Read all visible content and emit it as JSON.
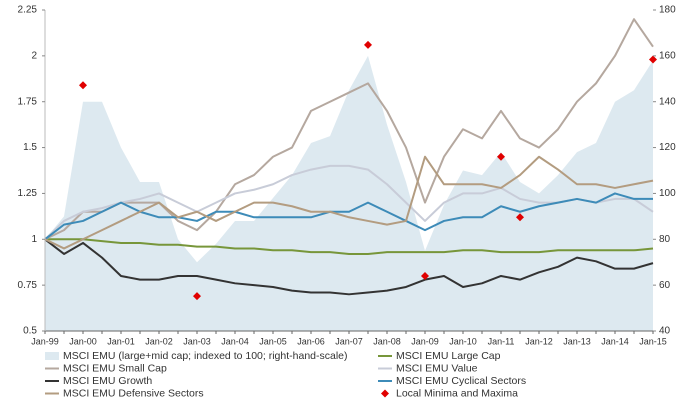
{
  "chart_data": {
    "type": "line",
    "categories": [
      "Jan-99",
      null,
      "Jan-00",
      null,
      "Jan-01",
      null,
      "Jan-02",
      null,
      "Jan-03",
      null,
      "Jan-04",
      null,
      "Jan-05",
      null,
      "Jan-06",
      null,
      "Jan-07",
      null,
      "Jan-08",
      null,
      "Jan-09",
      null,
      "Jan-10",
      null,
      "Jan-11",
      null,
      "Jan-12",
      null,
      "Jan-13",
      null,
      "Jan-14",
      null,
      "Jan-15"
    ],
    "ylim": [
      0.5,
      2.25
    ],
    "yticks": [
      0.5,
      0.75,
      1,
      1.25,
      1.5,
      1.75,
      2,
      2.25
    ],
    "y2lim": [
      40,
      180
    ],
    "y2ticks": [
      40,
      60,
      80,
      100,
      120,
      140,
      160,
      180
    ],
    "series": [
      {
        "name": "MSCI EMU (large+mid cap; indexed to 100; right-hand-scale)",
        "style": "area",
        "axis": "y2",
        "color": "#dde9f0",
        "values": [
          80,
          90,
          140,
          140,
          120,
          105,
          105,
          80,
          70,
          78,
          88,
          88,
          98,
          108,
          122,
          125,
          145,
          160,
          130,
          105,
          75,
          95,
          110,
          108,
          118,
          105,
          100,
          108,
          118,
          122,
          140,
          145,
          158
        ]
      },
      {
        "name": "MSCI EMU Large Cap",
        "style": "line",
        "color": "#77963a",
        "values": [
          1.0,
          1.0,
          1.0,
          0.99,
          0.98,
          0.98,
          0.97,
          0.97,
          0.96,
          0.96,
          0.95,
          0.95,
          0.94,
          0.94,
          0.93,
          0.93,
          0.92,
          0.92,
          0.93,
          0.93,
          0.93,
          0.93,
          0.94,
          0.94,
          0.93,
          0.93,
          0.93,
          0.94,
          0.94,
          0.94,
          0.94,
          0.94,
          0.95
        ]
      },
      {
        "name": "MSCI EMU Small Cap",
        "style": "line",
        "color": "#b5a89f",
        "values": [
          1.0,
          1.05,
          1.15,
          1.15,
          1.2,
          1.2,
          1.2,
          1.1,
          1.05,
          1.15,
          1.3,
          1.35,
          1.45,
          1.5,
          1.7,
          1.75,
          1.8,
          1.85,
          1.7,
          1.5,
          1.2,
          1.45,
          1.6,
          1.55,
          1.7,
          1.55,
          1.5,
          1.6,
          1.75,
          1.85,
          2.0,
          2.2,
          2.05
        ]
      },
      {
        "name": "MSCI EMU Value",
        "style": "line",
        "color": "#c8ccd8",
        "values": [
          1.0,
          1.1,
          1.15,
          1.17,
          1.2,
          1.22,
          1.25,
          1.2,
          1.15,
          1.2,
          1.25,
          1.27,
          1.3,
          1.35,
          1.38,
          1.4,
          1.4,
          1.38,
          1.3,
          1.2,
          1.1,
          1.2,
          1.25,
          1.25,
          1.28,
          1.22,
          1.2,
          1.2,
          1.22,
          1.2,
          1.22,
          1.22,
          1.15
        ]
      },
      {
        "name": "MSCI EMU Growth",
        "style": "line",
        "color": "#333333",
        "values": [
          1.0,
          0.92,
          0.98,
          0.9,
          0.8,
          0.78,
          0.78,
          0.8,
          0.8,
          0.78,
          0.76,
          0.75,
          0.74,
          0.72,
          0.71,
          0.71,
          0.7,
          0.71,
          0.72,
          0.74,
          0.78,
          0.8,
          0.74,
          0.76,
          0.8,
          0.78,
          0.82,
          0.85,
          0.9,
          0.88,
          0.84,
          0.84,
          0.87
        ]
      },
      {
        "name": "MSCI EMU Cyclical Sectors",
        "style": "line",
        "color": "#3d8bb8",
        "values": [
          1.0,
          1.08,
          1.1,
          1.15,
          1.2,
          1.15,
          1.12,
          1.12,
          1.1,
          1.15,
          1.15,
          1.12,
          1.12,
          1.12,
          1.12,
          1.15,
          1.15,
          1.2,
          1.15,
          1.1,
          1.05,
          1.1,
          1.12,
          1.12,
          1.18,
          1.15,
          1.18,
          1.2,
          1.22,
          1.2,
          1.25,
          1.22,
          1.22
        ]
      },
      {
        "name": "MSCI EMU Defensive Sectors",
        "style": "line",
        "color": "#b39c80",
        "values": [
          1.0,
          0.95,
          1.0,
          1.05,
          1.1,
          1.15,
          1.2,
          1.12,
          1.15,
          1.1,
          1.15,
          1.2,
          1.2,
          1.18,
          1.15,
          1.15,
          1.12,
          1.1,
          1.08,
          1.1,
          1.45,
          1.3,
          1.3,
          1.3,
          1.28,
          1.35,
          1.45,
          1.38,
          1.3,
          1.3,
          1.28,
          1.3,
          1.32
        ]
      },
      {
        "name": "Local Minima and Maxima",
        "style": "marker",
        "color": "#e00000",
        "values": [
          null,
          null,
          1.84,
          null,
          null,
          null,
          null,
          null,
          0.69,
          null,
          null,
          null,
          null,
          null,
          null,
          null,
          null,
          2.06,
          null,
          null,
          0.8,
          null,
          null,
          null,
          1.45,
          1.12,
          null,
          null,
          null,
          null,
          null,
          null,
          1.98
        ]
      }
    ]
  }
}
